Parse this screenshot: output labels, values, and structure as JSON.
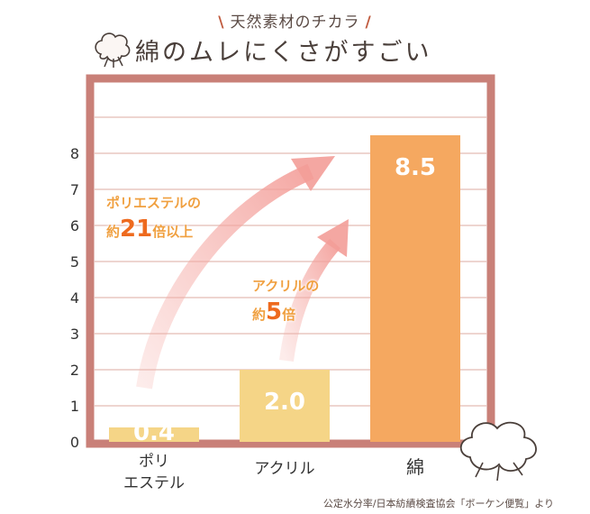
{
  "header": {
    "subtitle": "天然素材のチカラ",
    "title": "綿のムレにくさがすごい"
  },
  "chart_data": {
    "type": "bar",
    "categories": [
      "ポリ\nエステル",
      "アクリル",
      "綿"
    ],
    "values": [
      0.4,
      2.0,
      8.5
    ],
    "value_labels": [
      "0.4",
      "2.0",
      "8.5"
    ],
    "ylim": [
      0,
      10
    ],
    "y_ticks": [
      0,
      1,
      2,
      3,
      4,
      5,
      6,
      7,
      8
    ],
    "grid": true,
    "bar_colors": [
      "#f5d587",
      "#f5d587",
      "#f5a860"
    ],
    "xlabel": "",
    "ylabel": ""
  },
  "annotations": {
    "polyester": {
      "line1": "ポリエステルの",
      "prefix": "約",
      "number": "21",
      "suffix": "倍以上"
    },
    "acrylic": {
      "line1": "アクリルの",
      "prefix": "約",
      "number": "5",
      "suffix": "倍"
    }
  },
  "source_note": "公定水分率/日本紡績検査協会「ボーケン便覧」より",
  "colors": {
    "frame": "#c98078",
    "grid": "#e8c7c0",
    "arrow": "#f6b2ad",
    "accent_orange": "#ee6a1e",
    "accent_yellow": "#f0a040"
  }
}
